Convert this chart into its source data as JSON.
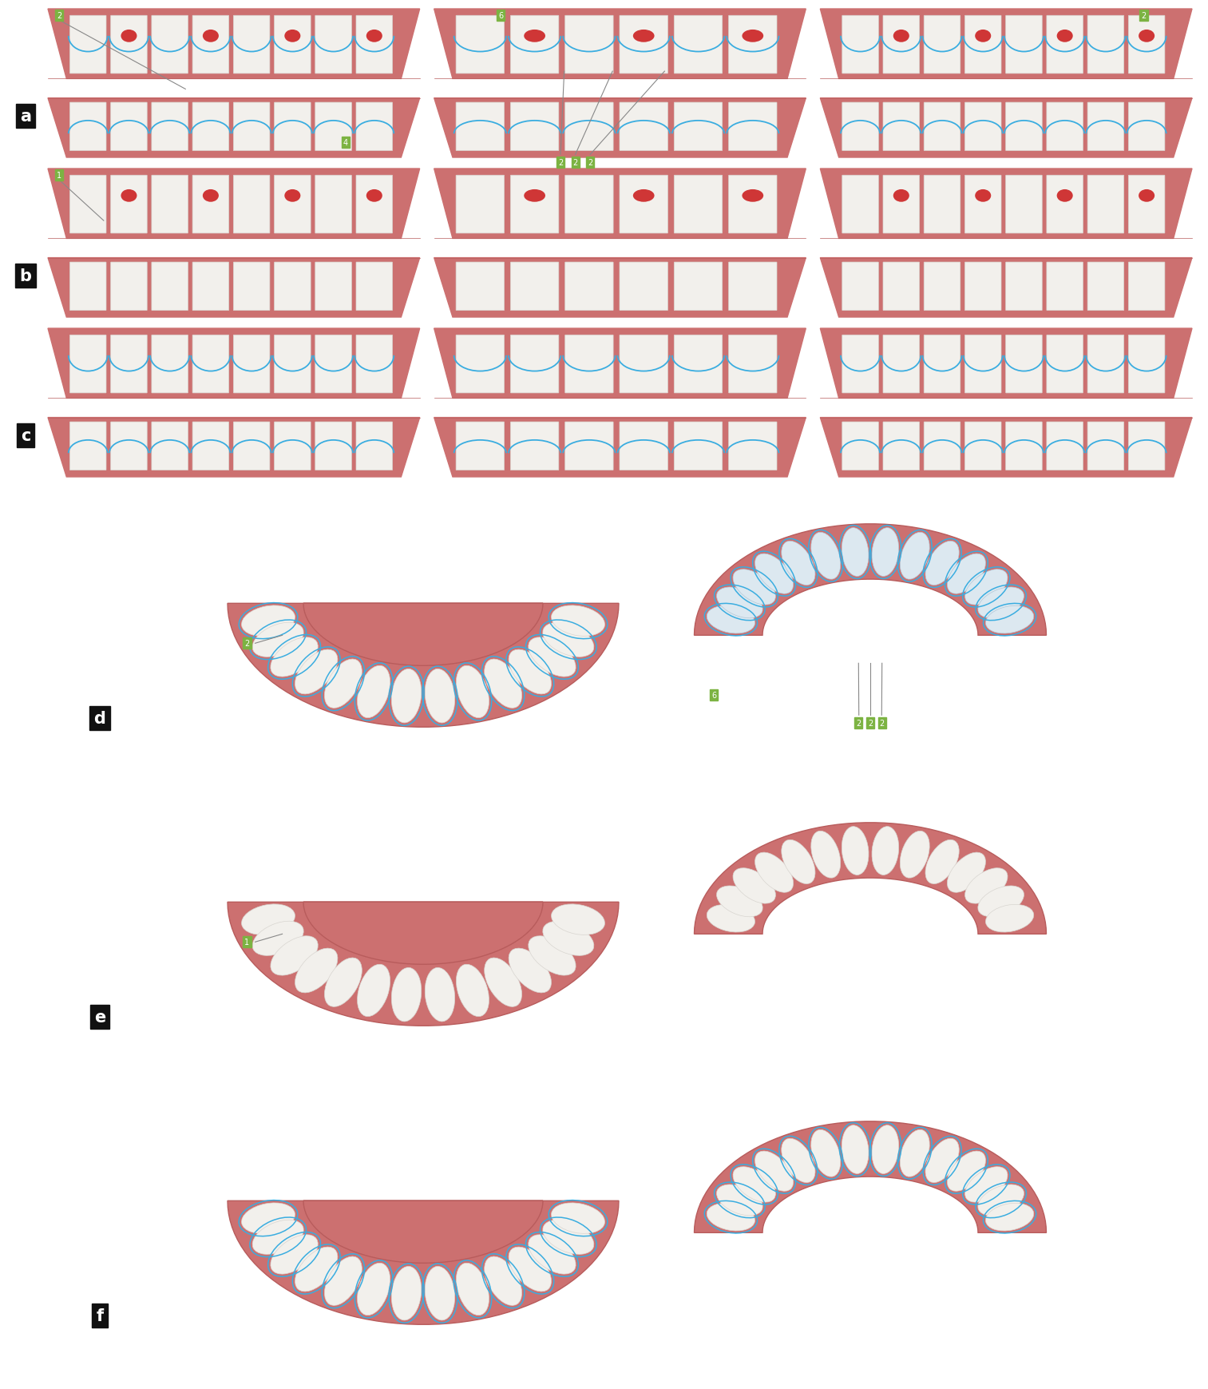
{
  "background_color": "#ffffff",
  "figure_width": 15.13,
  "figure_height": 17.4,
  "dpi": 100,
  "label_bg_color": "#111111",
  "label_text_color": "#ffffff",
  "label_fontsize": 15,
  "green_label_color": "#7cb342",
  "green_text_color": "#ffffff",
  "gum_color": "#cc7070",
  "gum_dark": "#b85c5c",
  "tooth_color": "#f2f0ec",
  "tooth_edge": "#d8d5d0",
  "aligner_color": "#dce8f0",
  "aligner_edge": "#b0c8d8",
  "blue_color": "#3aade0",
  "red_color": "#cc2222",
  "annotation_color": "#888888",
  "top_rows": [
    {
      "label": "a",
      "has_spots_upper": true,
      "has_spots_lower": false,
      "has_blue": true,
      "phase": 0
    },
    {
      "label": "b",
      "has_spots_upper": true,
      "has_spots_lower": false,
      "has_blue": false,
      "phase": 1
    },
    {
      "label": "c",
      "has_spots_upper": false,
      "has_spots_lower": false,
      "has_blue": true,
      "phase": 2
    }
  ],
  "bottom_rows": [
    {
      "label": "d",
      "has_blue_upper": true,
      "has_blue_lower": true,
      "phase": 0
    },
    {
      "label": "e",
      "has_blue_upper": false,
      "has_blue_lower": false,
      "phase": 1
    },
    {
      "label": "f",
      "has_blue_upper": true,
      "has_blue_lower": true,
      "phase": 2
    }
  ]
}
